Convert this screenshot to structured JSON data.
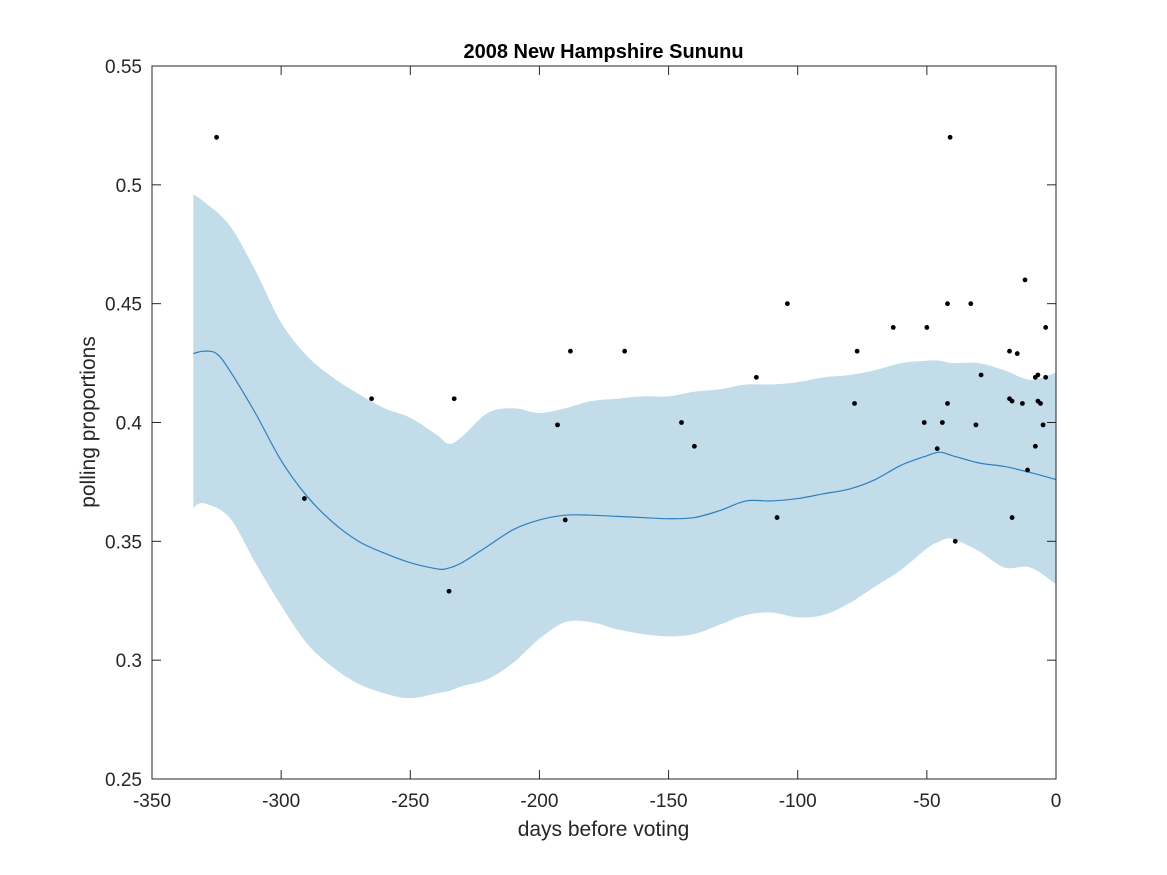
{
  "chart_data": {
    "type": "line",
    "title": "2008 New Hampshire Sununu",
    "xlabel": "days before voting",
    "ylabel": "polling proportions",
    "xlim": [
      -350,
      0
    ],
    "ylim": [
      0.25,
      0.55
    ],
    "xticks": [
      -350,
      -300,
      -250,
      -200,
      -150,
      -100,
      -50,
      0
    ],
    "xtick_labels": [
      "-350",
      "-300",
      "-250",
      "-200",
      "-150",
      "-100",
      "-50",
      "0"
    ],
    "yticks": [
      0.25,
      0.3,
      0.35,
      0.4,
      0.45,
      0.5,
      0.55
    ],
    "ytick_labels": [
      "0.25",
      "0.3",
      "0.35",
      "0.4",
      "0.45",
      "0.5",
      "0.55"
    ],
    "grid": false,
    "colors": {
      "band": "#c2dcea",
      "line": "#2f7fbf",
      "points": "#000000",
      "axes": "#262626"
    },
    "series": [
      {
        "role": "trend",
        "x": [
          -334,
          -330,
          -325,
          -320,
          -310,
          -300,
          -290,
          -280,
          -270,
          -260,
          -250,
          -240,
          -236,
          -230,
          -220,
          -210,
          -200,
          -190,
          -180,
          -170,
          -160,
          -150,
          -140,
          -130,
          -120,
          -110,
          -100,
          -90,
          -80,
          -70,
          -60,
          -50,
          -45,
          -40,
          -30,
          -20,
          -10,
          0
        ],
        "y": [
          0.429,
          0.43,
          0.429,
          0.422,
          0.404,
          0.384,
          0.369,
          0.358,
          0.35,
          0.345,
          0.341,
          0.3385,
          0.3385,
          0.341,
          0.348,
          0.355,
          0.359,
          0.361,
          0.361,
          0.3605,
          0.36,
          0.3595,
          0.36,
          0.363,
          0.367,
          0.367,
          0.368,
          0.37,
          0.372,
          0.376,
          0.382,
          0.386,
          0.3875,
          0.386,
          0.383,
          0.3815,
          0.379,
          0.376
        ]
      },
      {
        "role": "band",
        "x": [
          -334,
          -330,
          -320,
          -310,
          -300,
          -290,
          -280,
          -270,
          -260,
          -250,
          -240,
          -235,
          -230,
          -220,
          -210,
          -200,
          -190,
          -180,
          -170,
          -160,
          -150,
          -140,
          -130,
          -120,
          -110,
          -100,
          -90,
          -80,
          -70,
          -60,
          -50,
          -45,
          -40,
          -30,
          -20,
          -10,
          0
        ],
        "upper": [
          0.496,
          0.493,
          0.483,
          0.464,
          0.442,
          0.428,
          0.419,
          0.412,
          0.406,
          0.402,
          0.395,
          0.391,
          0.394,
          0.404,
          0.406,
          0.404,
          0.406,
          0.409,
          0.41,
          0.411,
          0.411,
          0.413,
          0.414,
          0.416,
          0.416,
          0.417,
          0.419,
          0.42,
          0.422,
          0.425,
          0.426,
          0.426,
          0.425,
          0.425,
          0.422,
          0.418,
          0.421
        ],
        "lower": [
          0.364,
          0.366,
          0.36,
          0.341,
          0.323,
          0.307,
          0.297,
          0.29,
          0.286,
          0.284,
          0.286,
          0.287,
          0.289,
          0.292,
          0.299,
          0.309,
          0.316,
          0.316,
          0.313,
          0.311,
          0.31,
          0.311,
          0.315,
          0.319,
          0.32,
          0.318,
          0.319,
          0.324,
          0.331,
          0.338,
          0.347,
          0.35,
          0.351,
          0.346,
          0.339,
          0.339,
          0.332
        ]
      },
      {
        "role": "polls",
        "points": [
          [
            -325,
            0.52
          ],
          [
            -291,
            0.368
          ],
          [
            -265,
            0.41
          ],
          [
            -235,
            0.329
          ],
          [
            -233,
            0.41
          ],
          [
            -193,
            0.399
          ],
          [
            -190,
            0.359
          ],
          [
            -188,
            0.43
          ],
          [
            -167,
            0.43
          ],
          [
            -145,
            0.4
          ],
          [
            -140,
            0.39
          ],
          [
            -116,
            0.419
          ],
          [
            -108,
            0.36
          ],
          [
            -104,
            0.45
          ],
          [
            -78,
            0.408
          ],
          [
            -77,
            0.43
          ],
          [
            -63,
            0.44
          ],
          [
            -51,
            0.4
          ],
          [
            -50,
            0.44
          ],
          [
            -46,
            0.389
          ],
          [
            -44,
            0.4
          ],
          [
            -42,
            0.45
          ],
          [
            -42,
            0.408
          ],
          [
            -41,
            0.52
          ],
          [
            -39,
            0.35
          ],
          [
            -33,
            0.45
          ],
          [
            -31,
            0.399
          ],
          [
            -29,
            0.42
          ],
          [
            -18,
            0.43
          ],
          [
            -18,
            0.41
          ],
          [
            -17,
            0.409
          ],
          [
            -17,
            0.36
          ],
          [
            -15,
            0.429
          ],
          [
            -13,
            0.408
          ],
          [
            -12,
            0.46
          ],
          [
            -11,
            0.38
          ],
          [
            -8,
            0.39
          ],
          [
            -8,
            0.419
          ],
          [
            -7,
            0.409
          ],
          [
            -7,
            0.42
          ],
          [
            -6,
            0.408
          ],
          [
            -5,
            0.399
          ],
          [
            -4,
            0.44
          ],
          [
            -4,
            0.419
          ]
        ]
      }
    ]
  }
}
